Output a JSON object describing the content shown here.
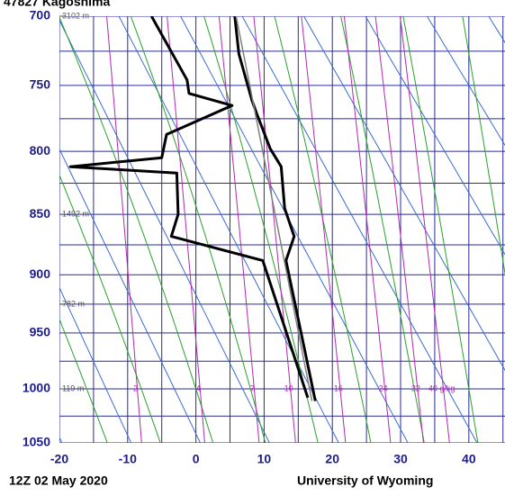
{
  "chart_data": {
    "type": "line",
    "title": "47827 Kagoshima",
    "footer_left": "12Z 02 May 2020",
    "footer_right": "University of Wyoming",
    "xlim": [
      -20,
      45.3
    ],
    "xticks": [
      -20,
      -10,
      0,
      10,
      20,
      30,
      40
    ],
    "xgrid": [
      -20,
      -15,
      -10,
      -5,
      0,
      5,
      10,
      15,
      20,
      25,
      30,
      35,
      40,
      45
    ],
    "ylim": [
      700,
      1050
    ],
    "yticks": [
      700,
      750,
      800,
      850,
      900,
      950,
      1000,
      1050
    ],
    "ygrid": [
      700,
      725,
      750,
      775,
      800,
      825,
      850,
      875,
      900,
      925,
      950,
      975,
      1000,
      1025,
      1050
    ],
    "y_exponent": 0.286,
    "series": [
      {
        "color": "#000000",
        "width": 3,
        "x": [
          17.5,
          13.2,
          14.4,
          13.0,
          12.5,
          10.9,
          8.9,
          8.2,
          6.3,
          5.7
        ],
        "values": [
          1011,
          888,
          868,
          845,
          812,
          798,
          771,
          761,
          727,
          700
        ]
      },
      {
        "color": "#000000",
        "width": 3,
        "x": [
          16.4,
          9.8,
          -3.6,
          -2.6,
          -2.8,
          -18.4,
          -5.0,
          -4.3,
          5.3,
          -1.0,
          -1.3,
          -6.5
        ],
        "values": [
          1008,
          888,
          868,
          850,
          817,
          812,
          805,
          787,
          765,
          756,
          746,
          700
        ]
      },
      {
        "color": "#808080",
        "width": 1.5,
        "x": [
          17.0,
          5.9
        ],
        "values": [
          1011,
          700
        ]
      }
    ],
    "heights": [
      {
        "pressure": 700,
        "label": "3102 m"
      },
      {
        "pressure": 850,
        "label": "1492 m"
      },
      {
        "pressure": 925,
        "label": "782 m"
      },
      {
        "pressure": 1000,
        "label": "119 m"
      }
    ],
    "mixing_ratios": [
      2,
      4,
      7,
      10,
      16,
      24,
      32,
      {
        "value": 40,
        "label": "40 g/kg"
      }
    ],
    "colors": {
      "grid": "#2a2a9a",
      "dry_adiabat": "#3a6ccf",
      "moist_adiabat": "#2aa02a",
      "mixing_ratio": "#b02ab0"
    }
  }
}
